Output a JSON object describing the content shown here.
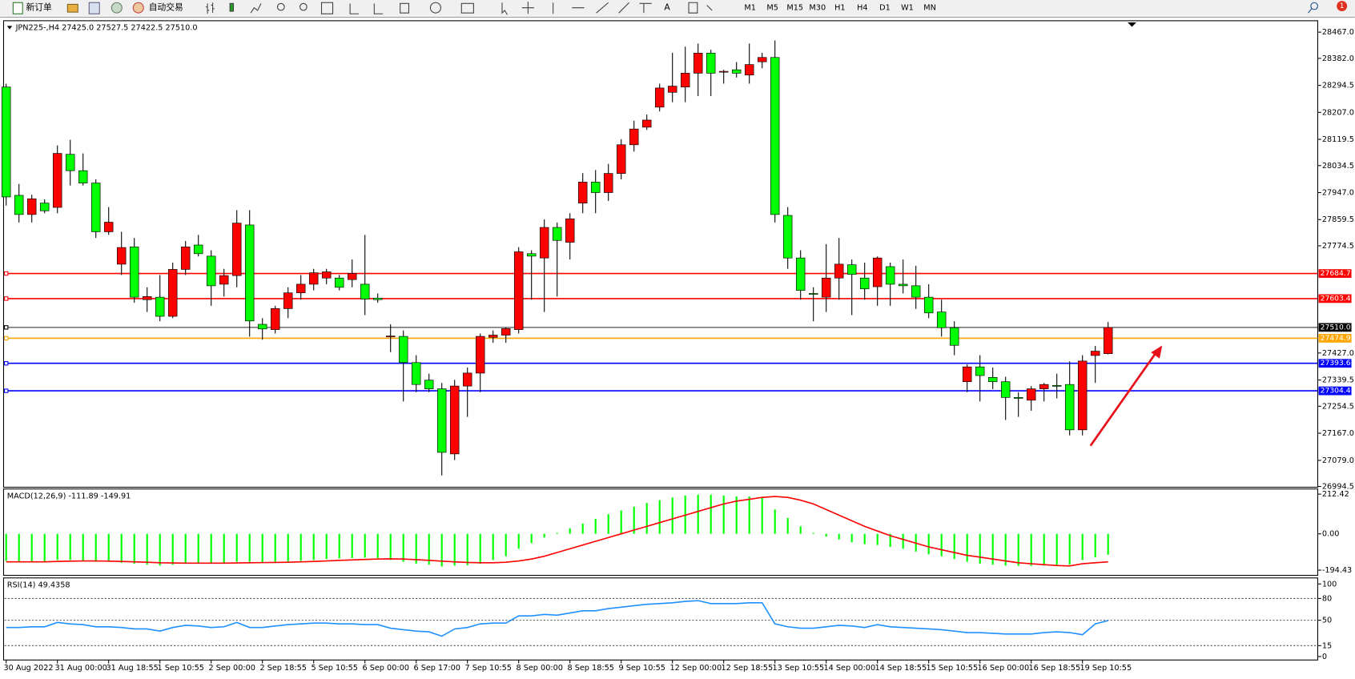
{
  "toolbar": {
    "new_order": "新订单",
    "auto_trading": "自动交易",
    "timeframes": [
      "M1",
      "M5",
      "M15",
      "M30",
      "H1",
      "H4",
      "D1",
      "W1",
      "MN"
    ],
    "text_tool": "A",
    "notifications": 1
  },
  "chart_data": [
    {
      "type": "candlestick",
      "title": "JPN225-,H4  27425.0 27527.5 27422.5 27510.0",
      "up_color": "#ff0000",
      "down_color": "#00ff00",
      "categories": [
        "30 Aug 2022",
        null,
        null,
        null,
        "31 Aug 00:00",
        null,
        null,
        null,
        "31 Aug 18:55",
        null,
        null,
        null,
        "1 Sep 10:55",
        null,
        null,
        null,
        "2 Sep 00:00",
        null,
        null,
        null,
        "2 Sep 18:55",
        null,
        null,
        null,
        "5 Sep 10:55",
        null,
        null,
        null,
        "6 Sep 00:00",
        null,
        null,
        null,
        "6 Sep 17:00",
        null,
        null,
        null,
        "7 Sep 10:55",
        null,
        null,
        null,
        "8 Sep 00:00",
        null,
        null,
        null,
        "8 Sep 18:55",
        null,
        null,
        null,
        "9 Sep 10:55",
        null,
        null,
        null,
        "12 Sep 00:00",
        null,
        null,
        null,
        "12 Sep 18:55",
        null,
        null,
        null,
        "13 Sep 10:55",
        null,
        null,
        null,
        "14 Sep 00:00",
        null,
        null,
        null,
        "14 Sep 18:55",
        null,
        null,
        null,
        "15 Sep 10:55",
        null,
        null,
        null,
        "16 Sep 00:00",
        null,
        null,
        null,
        "16 Sep 18:55",
        null,
        null,
        null,
        "19 Sep 10:55",
        null,
        null
      ],
      "values": [
        [
          28289,
          28300,
          27905,
          27933
        ],
        [
          27938,
          27975,
          27850,
          27876
        ],
        [
          27876,
          27940,
          27850,
          27927
        ],
        [
          27913,
          27925,
          27880,
          27888
        ],
        [
          27899,
          28100,
          27880,
          28074
        ],
        [
          28071,
          28118,
          27970,
          28018
        ],
        [
          28018,
          28074,
          27970,
          27978
        ],
        [
          27978,
          27990,
          27800,
          27820
        ],
        [
          27820,
          27900,
          27810,
          27851
        ],
        [
          27715,
          27820,
          27680,
          27769
        ],
        [
          27771,
          27800,
          27590,
          27608
        ],
        [
          27600,
          27640,
          27560,
          27610
        ],
        [
          27608,
          27680,
          27530,
          27546
        ],
        [
          27546,
          27720,
          27540,
          27698
        ],
        [
          27698,
          27790,
          27680,
          27771
        ],
        [
          27777,
          27810,
          27740,
          27749
        ],
        [
          27741,
          27760,
          27580,
          27645
        ],
        [
          27650,
          27700,
          27610,
          27678
        ],
        [
          27678,
          27890,
          27640,
          27848
        ],
        [
          27842,
          27890,
          27480,
          27531
        ],
        [
          27520,
          27540,
          27470,
          27505
        ],
        [
          27503,
          27580,
          27490,
          27571
        ],
        [
          27571,
          27640,
          27540,
          27622
        ],
        [
          27622,
          27680,
          27600,
          27650
        ],
        [
          27650,
          27700,
          27630,
          27687
        ],
        [
          27670,
          27700,
          27650,
          27690
        ],
        [
          27670,
          27680,
          27630,
          27640
        ],
        [
          27665,
          27730,
          27640,
          27685
        ],
        [
          27650,
          27810,
          27550,
          27602
        ],
        [
          27605,
          27620,
          27590,
          27600
        ],
        [
          27480,
          27520,
          27430,
          27482
        ],
        [
          27481,
          27500,
          27270,
          27396
        ],
        [
          27396,
          27420,
          27300,
          27325
        ],
        [
          27339,
          27360,
          27300,
          27311
        ],
        [
          27311,
          27330,
          27030,
          27105
        ],
        [
          27100,
          27340,
          27080,
          27320
        ],
        [
          27320,
          27380,
          27220,
          27362
        ],
        [
          27362,
          27490,
          27300,
          27481
        ],
        [
          27478,
          27500,
          27460,
          27485
        ],
        [
          27485,
          27510,
          27460,
          27506
        ],
        [
          27503,
          27770,
          27490,
          27755
        ],
        [
          27749,
          27760,
          27600,
          27741
        ],
        [
          27735,
          27860,
          27560,
          27834
        ],
        [
          27834,
          27850,
          27610,
          27792
        ],
        [
          27786,
          27880,
          27730,
          27862
        ],
        [
          27913,
          28010,
          27880,
          27981
        ],
        [
          27981,
          28020,
          27880,
          27947
        ],
        [
          27947,
          28040,
          27920,
          28009
        ],
        [
          28009,
          28120,
          27990,
          28102
        ],
        [
          28102,
          28180,
          28080,
          28153
        ],
        [
          28159,
          28200,
          28150,
          28182
        ],
        [
          28224,
          28300,
          28210,
          28286
        ],
        [
          28272,
          28400,
          28240,
          28292
        ],
        [
          28289,
          28420,
          28240,
          28334
        ],
        [
          28334,
          28430,
          28260,
          28399
        ],
        [
          28399,
          28410,
          28260,
          28334
        ],
        [
          28338,
          28345,
          28300,
          28340
        ],
        [
          28345,
          28370,
          28320,
          28334
        ],
        [
          28328,
          28430,
          28300,
          28362
        ],
        [
          28371,
          28400,
          28350,
          28385
        ],
        [
          28385,
          28440,
          27850,
          27876
        ],
        [
          27873,
          27900,
          27700,
          27735
        ],
        [
          27735,
          27760,
          27600,
          27630
        ],
        [
          27620,
          27640,
          27530,
          27618
        ],
        [
          27608,
          27780,
          27560,
          27670
        ],
        [
          27670,
          27800,
          27600,
          27715
        ],
        [
          27713,
          27730,
          27550,
          27682
        ],
        [
          27670,
          27720,
          27600,
          27635
        ],
        [
          27642,
          27740,
          27580,
          27735
        ],
        [
          27707,
          27720,
          27580,
          27650
        ],
        [
          27650,
          27730,
          27620,
          27645
        ],
        [
          27645,
          27710,
          27570,
          27608
        ],
        [
          27608,
          27650,
          27540,
          27557
        ],
        [
          27560,
          27600,
          27480,
          27509
        ],
        [
          27509,
          27530,
          27420,
          27452
        ],
        [
          27334,
          27390,
          27300,
          27382
        ],
        [
          27382,
          27420,
          27270,
          27354
        ],
        [
          27348,
          27380,
          27310,
          27334
        ],
        [
          27334,
          27350,
          27210,
          27283
        ],
        [
          27283,
          27300,
          27220,
          27280
        ],
        [
          27274,
          27320,
          27240,
          27311
        ],
        [
          27311,
          27330,
          27270,
          27325
        ],
        [
          27322,
          27360,
          27280,
          27320
        ],
        [
          27325,
          27400,
          27160,
          27178
        ],
        [
          27178,
          27420,
          27160,
          27401
        ],
        [
          27419,
          27450,
          27330,
          27433
        ],
        [
          27425,
          27527.5,
          27422.5,
          27510
        ]
      ],
      "ylim": [
        26992,
        28504
      ],
      "yticks": [
        {
          "value": 28467.0,
          "label": "28467.0"
        },
        {
          "value": 28382.0,
          "label": "28382.0"
        },
        28294.5,
        {
          "value": 28207.0,
          "label": "28207.0"
        },
        28119.5,
        28034.5,
        {
          "value": 27947.0,
          "label": "27947.0"
        },
        27859.5,
        27774.5,
        {
          "value": 27427.0,
          "label": "27427.0"
        },
        27339.5,
        27254.5,
        {
          "value": 27167.0,
          "label": "27167.0"
        },
        {
          "value": 27079.0,
          "label": "27079.0"
        },
        26994.5
      ],
      "levels": [
        {
          "value": 27684.7,
          "label": "27684.7",
          "color": "#ff0000"
        },
        {
          "value": 27603.4,
          "label": "27603.4",
          "color": "#ff0000"
        },
        {
          "value": 27510.0,
          "label": "27510.0",
          "color": "#000000"
        },
        {
          "value": 27474.9,
          "label": "27474.9",
          "color": "#ffa500"
        },
        {
          "value": 27393.6,
          "label": "27393.6",
          "color": "#0000ff"
        },
        {
          "value": 27304.4,
          "label": "27304.4",
          "color": "#0000ff"
        }
      ]
    },
    {
      "type": "macd",
      "title": "MACD(12,26,9) -111.89 -149.91",
      "color": "#00ff00",
      "signal_color": "#ff0000",
      "values": [
        -145,
        -150,
        -152,
        -150,
        -140,
        -140,
        -145,
        -150,
        -150,
        -155,
        -160,
        -165,
        -170,
        -165,
        -160,
        -155,
        -158,
        -160,
        -150,
        -150,
        -155,
        -150,
        -148,
        -145,
        -140,
        -135,
        -132,
        -130,
        -128,
        -130,
        -140,
        -150,
        -160,
        -165,
        -175,
        -170,
        -168,
        -160,
        -140,
        -120,
        -80,
        -50,
        -20,
        5,
        30,
        55,
        80,
        105,
        125,
        145,
        165,
        180,
        195,
        205,
        210,
        210,
        205,
        200,
        200,
        195,
        130,
        85,
        40,
        5,
        -15,
        -30,
        -45,
        -55,
        -60,
        -70,
        -80,
        -95,
        -110,
        -120,
        -135,
        -150,
        -160,
        -165,
        -170,
        -172,
        -172,
        -170,
        -168,
        -165,
        -140,
        -125,
        -111.89
      ],
      "signal_values": [
        -150,
        -150,
        -150,
        -150,
        -148,
        -146,
        -145,
        -145,
        -146,
        -148,
        -150,
        -152,
        -155,
        -156,
        -157,
        -157,
        -157,
        -157,
        -156,
        -155,
        -154,
        -153,
        -152,
        -150,
        -148,
        -145,
        -142,
        -140,
        -137,
        -135,
        -134,
        -135,
        -138,
        -142,
        -146,
        -150,
        -153,
        -155,
        -155,
        -152,
        -145,
        -135,
        -120,
        -100,
        -80,
        -60,
        -40,
        -20,
        0,
        20,
        40,
        60,
        80,
        100,
        120,
        140,
        160,
        175,
        185,
        195,
        200,
        195,
        180,
        160,
        130,
        100,
        70,
        40,
        15,
        -10,
        -30,
        -50,
        -70,
        -85,
        -100,
        -115,
        -125,
        -135,
        -145,
        -155,
        -160,
        -165,
        -170,
        -172,
        -160,
        -155,
        -149.91
      ],
      "ylim": [
        -222.2,
        240.2
      ],
      "yticks": [
        212.42,
        {
          "value": 0,
          "label": "0.00"
        },
        -194.43
      ]
    },
    {
      "type": "line",
      "title": "RSI(14) 49.4358",
      "color": "#1e90ff",
      "values": [
        40,
        40,
        41,
        41,
        47,
        45,
        44,
        41,
        41,
        40,
        38,
        38,
        35,
        40,
        43,
        42,
        40,
        41,
        47,
        40,
        40,
        42,
        44,
        45,
        46,
        46,
        45,
        45,
        44,
        44,
        39,
        37,
        35,
        34,
        28,
        38,
        40,
        45,
        46,
        46,
        56,
        56,
        58,
        57,
        60,
        63,
        63,
        66,
        68,
        70,
        72,
        73,
        74,
        76,
        77,
        73,
        73,
        73,
        74,
        74,
        45,
        41,
        39,
        39,
        41,
        43,
        42,
        40,
        44,
        41,
        40,
        39,
        38,
        37,
        35,
        33,
        33,
        32,
        31,
        31,
        31,
        33,
        34,
        33,
        30,
        45,
        49.4358
      ],
      "ylim": [
        -4.8,
        108.3
      ],
      "yticks": [
        100,
        80,
        50,
        15,
        0
      ],
      "levels": [
        80,
        50,
        15
      ]
    }
  ]
}
